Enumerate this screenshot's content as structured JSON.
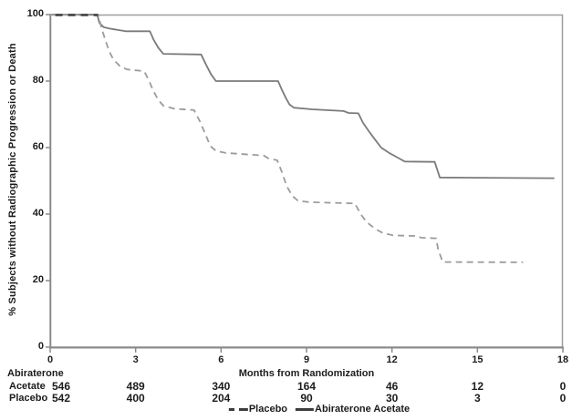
{
  "colors": {
    "background": "#ffffff",
    "text": "#1c1c1c",
    "frame": "#9e9e9e",
    "axis": "#8a8a8a",
    "solid_curve": "#7b7b7b",
    "dashed_curve": "#9c9c9c",
    "dashed_overlap_dark": "#3f3f3f",
    "legend_glyph": "#3c3c3c"
  },
  "chart_data": {
    "type": "line",
    "subtype": "kaplan-meier-step",
    "title": "",
    "xlabel": "Months from Randomization",
    "ylabel": "% Subjects without Radiographic Progression or Death",
    "xlim": [
      0,
      18
    ],
    "ylim": [
      0,
      100
    ],
    "xticks": [
      0,
      3,
      6,
      9,
      12,
      15,
      18
    ],
    "yticks": [
      0,
      20,
      40,
      60,
      80,
      100
    ],
    "grid": false,
    "legend": {
      "position": "bottom-center",
      "entries": [
        {
          "label": "Placebo",
          "style": "dashed"
        },
        {
          "label": "Abiraterone Acetate",
          "style": "solid"
        }
      ]
    },
    "series": [
      {
        "name": "Abiraterone Acetate",
        "style": "solid",
        "points": [
          [
            0,
            100
          ],
          [
            1.65,
            100
          ],
          [
            1.73,
            97.5
          ],
          [
            1.88,
            96.2
          ],
          [
            2.15,
            95.7
          ],
          [
            2.5,
            95.2
          ],
          [
            2.65,
            95
          ],
          [
            3.5,
            95
          ],
          [
            3.63,
            92.5
          ],
          [
            3.8,
            90
          ],
          [
            3.97,
            88.2
          ],
          [
            5.3,
            88
          ],
          [
            5.47,
            85
          ],
          [
            5.65,
            82
          ],
          [
            5.82,
            80
          ],
          [
            8.0,
            80
          ],
          [
            8.13,
            77.5
          ],
          [
            8.27,
            75
          ],
          [
            8.4,
            73
          ],
          [
            8.55,
            72
          ],
          [
            9.2,
            71.5
          ],
          [
            10.3,
            71
          ],
          [
            10.48,
            70.4
          ],
          [
            10.82,
            70.3
          ],
          [
            10.98,
            67.5
          ],
          [
            11.18,
            65
          ],
          [
            11.4,
            62.5
          ],
          [
            11.62,
            60
          ],
          [
            11.92,
            58.3
          ],
          [
            12.2,
            57
          ],
          [
            12.45,
            55.8
          ],
          [
            13.5,
            55.7
          ],
          [
            13.68,
            51
          ],
          [
            17.7,
            50.8
          ]
        ]
      },
      {
        "name": "Placebo",
        "style": "dashed",
        "points": [
          [
            0,
            100
          ],
          [
            1.68,
            100
          ],
          [
            1.8,
            96
          ],
          [
            1.93,
            92.5
          ],
          [
            2.07,
            89
          ],
          [
            2.22,
            86.5
          ],
          [
            2.45,
            84.5
          ],
          [
            2.7,
            83.5
          ],
          [
            3.3,
            83
          ],
          [
            3.45,
            80.5
          ],
          [
            3.6,
            77.5
          ],
          [
            3.78,
            74.5
          ],
          [
            3.97,
            72.6
          ],
          [
            4.35,
            71.7
          ],
          [
            5.05,
            71.3
          ],
          [
            5.25,
            68
          ],
          [
            5.45,
            64
          ],
          [
            5.62,
            60.5
          ],
          [
            5.82,
            59
          ],
          [
            6.15,
            58.4
          ],
          [
            7.5,
            57.6
          ],
          [
            7.65,
            56.8
          ],
          [
            7.97,
            56.2
          ],
          [
            8.12,
            53
          ],
          [
            8.3,
            48.5
          ],
          [
            8.5,
            45.5
          ],
          [
            8.7,
            44
          ],
          [
            9.1,
            43.6
          ],
          [
            10.7,
            43.2
          ],
          [
            10.9,
            40
          ],
          [
            11.12,
            37.5
          ],
          [
            11.42,
            35.5
          ],
          [
            11.68,
            34.3
          ],
          [
            12.05,
            33.6
          ],
          [
            12.9,
            33.4
          ],
          [
            13.02,
            32.9
          ],
          [
            13.55,
            32.7
          ],
          [
            13.62,
            29.5
          ],
          [
            13.78,
            25.6
          ],
          [
            16.6,
            25.5
          ]
        ]
      }
    ],
    "at_risk": {
      "months": [
        0,
        3,
        6,
        9,
        12,
        15,
        18
      ],
      "rows": [
        {
          "label_lines": [
            "Abiraterone",
            "Acetate"
          ],
          "counts": [
            546,
            489,
            340,
            164,
            46,
            12,
            0
          ]
        },
        {
          "label_lines": [
            "Placebo"
          ],
          "counts": [
            542,
            400,
            204,
            90,
            30,
            3,
            0
          ]
        }
      ]
    }
  }
}
